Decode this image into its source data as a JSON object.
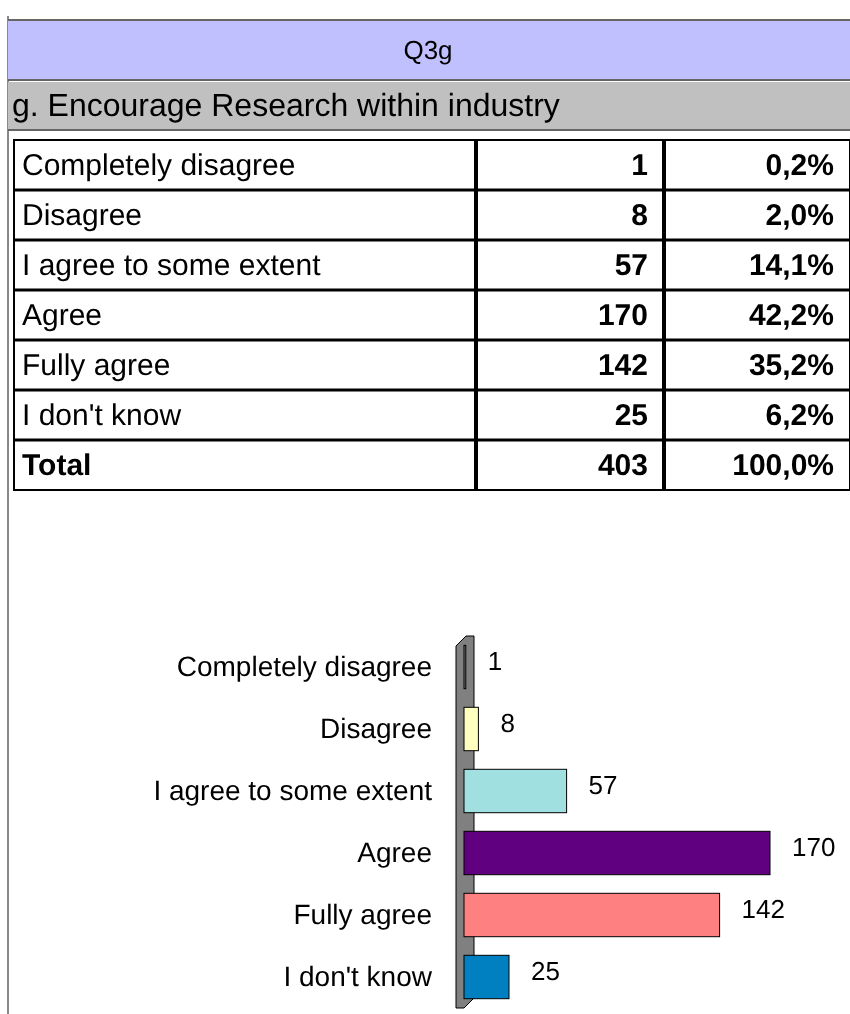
{
  "chart_data": {
    "type": "bar",
    "orientation": "horizontal",
    "title": "Q3g",
    "subtitle": "g. Encourage Research within industry",
    "categories": [
      "Completely disagree",
      "Disagree",
      "I agree to some extent",
      "Agree",
      "Fully agree",
      "I don't know"
    ],
    "values": [
      1,
      8,
      57,
      170,
      142,
      25
    ],
    "colors": [
      "#808080",
      "#ffffc0",
      "#a0e0e0",
      "#600080",
      "#ff8080",
      "#0080c0"
    ],
    "data_labels": true,
    "annotations": [
      "1",
      "0,2%",
      "8",
      "2,0%",
      "57",
      "14,1%",
      "170",
      "42,2%",
      "142",
      "35,2%",
      "25",
      "6,2%",
      "Total",
      "403",
      "100,0%"
    ]
  }
}
